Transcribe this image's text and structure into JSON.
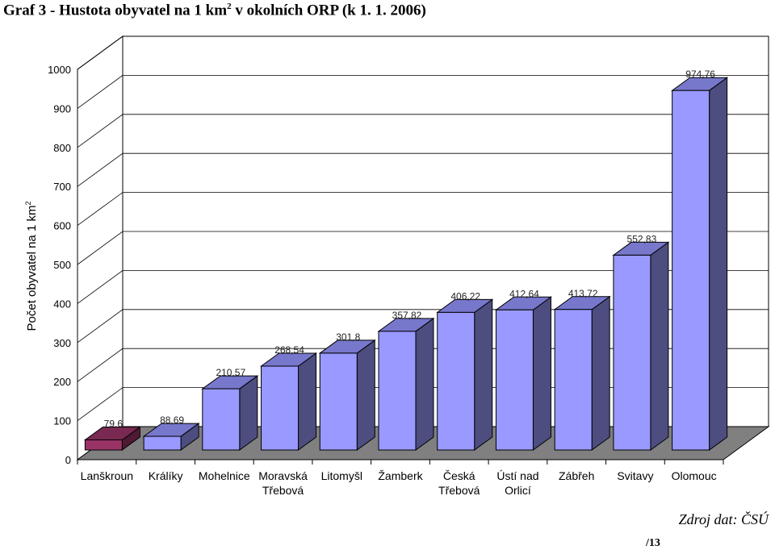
{
  "title_main": "Graf 3 - Hustota obyvatel na 1 km",
  "title_sup": "2",
  "title_tail": " v okolních ORP (k 1. 1. 2006)",
  "ylabel_main": "Počet obyvatel na 1 km",
  "ylabel_sup": "2",
  "source": "Zdroj dat: ČSÚ",
  "page_number": "/13",
  "chart_data": {
    "type": "bar",
    "title": "Graf 3 - Hustota obyvatel na 1 km2 v okolních ORP (k 1. 1. 2006)",
    "xlabel": "",
    "ylabel": "Počet obyvatel na 1 km2",
    "ylim": [
      0,
      1000
    ],
    "yticks": [
      0,
      100,
      200,
      300,
      400,
      500,
      600,
      700,
      800,
      900,
      1000
    ],
    "grid": true,
    "legend": "none",
    "categories": [
      [
        "Lanškroun"
      ],
      [
        "Králíky"
      ],
      [
        "Mohelnice"
      ],
      [
        "Moravská",
        "Třebová"
      ],
      [
        "Litomyšl"
      ],
      [
        "Žamberk"
      ],
      [
        "Česká",
        "Třebová"
      ],
      [
        "Ústí nad",
        "Orlicí"
      ],
      [
        "Zábřeh"
      ],
      [
        "Svitavy"
      ],
      [
        "Olomouc"
      ]
    ],
    "values": [
      79.6,
      88.69,
      210.57,
      268.54,
      301.8,
      357.82,
      406.22,
      412.64,
      413.72,
      552.83,
      974.76
    ],
    "value_labels": [
      "79,6",
      "88,69",
      "210,57",
      "268,54",
      "301,8",
      "357,82",
      "406,22",
      "412,64",
      "413,72",
      "552,83",
      "974,76"
    ],
    "colors": {
      "default_front": "#9999ff",
      "default_side": "#4d4d80",
      "default_top": "#7777cc",
      "highlight_front": "#993366",
      "highlight_side": "#4d1933",
      "highlight_top": "#7a2952",
      "highlight_index": 0,
      "wall": "#ffffff",
      "floor": "#808080",
      "grid": "#000000"
    }
  }
}
